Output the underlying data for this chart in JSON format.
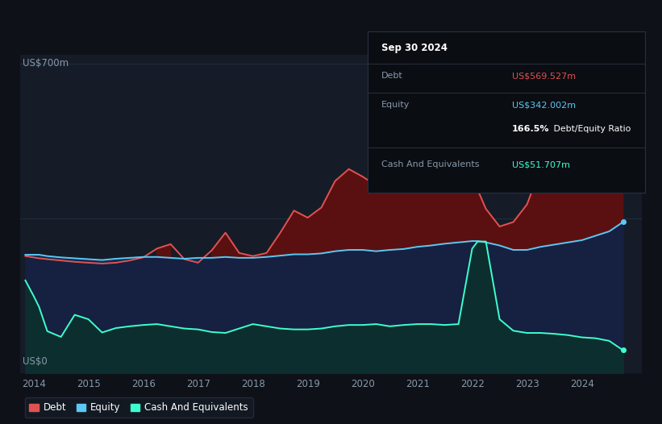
{
  "bg_color": "#0e1117",
  "plot_bg_color": "#151c27",
  "ylabel_top": "US$700m",
  "ylabel_bottom": "US$0",
  "x_ticks": [
    "2014",
    "2015",
    "2016",
    "2017",
    "2018",
    "2019",
    "2020",
    "2021",
    "2022",
    "2023",
    "2024"
  ],
  "legend": [
    "Debt",
    "Equity",
    "Cash And Equivalents"
  ],
  "legend_colors": [
    "#e05252",
    "#5bc8f5",
    "#3dffd0"
  ],
  "debt_color": "#e05252",
  "equity_color": "#5bc8f5",
  "cash_color": "#3dffd0",
  "debt_fill_color": "#5a1010",
  "equity_fill_color": "#162040",
  "cash_fill_color": "#0d2e2e",
  "grid_color": "#253040",
  "tooltip_bg": "#0a0d12",
  "tooltip_border": "#2a3040",
  "years": [
    2013.85,
    2014.0,
    2014.1,
    2014.25,
    2014.5,
    2014.75,
    2015.0,
    2015.25,
    2015.5,
    2015.75,
    2016.0,
    2016.25,
    2016.5,
    2016.75,
    2017.0,
    2017.25,
    2017.5,
    2017.75,
    2018.0,
    2018.25,
    2018.5,
    2018.75,
    2019.0,
    2019.25,
    2019.5,
    2019.75,
    2020.0,
    2020.25,
    2020.5,
    2020.75,
    2021.0,
    2021.25,
    2021.5,
    2021.75,
    2022.0,
    2022.1,
    2022.25,
    2022.5,
    2022.75,
    2023.0,
    2023.25,
    2023.5,
    2023.75,
    2024.0,
    2024.25,
    2024.5,
    2024.75
  ],
  "debt": [
    265,
    262,
    260,
    258,
    255,
    252,
    250,
    248,
    250,
    255,
    262,
    282,
    292,
    258,
    250,
    278,
    318,
    272,
    265,
    272,
    318,
    368,
    352,
    375,
    435,
    462,
    445,
    425,
    435,
    445,
    452,
    462,
    458,
    442,
    422,
    415,
    372,
    332,
    342,
    382,
    465,
    615,
    572,
    535,
    522,
    542,
    570
  ],
  "equity": [
    268,
    268,
    268,
    265,
    262,
    260,
    258,
    256,
    259,
    261,
    263,
    263,
    261,
    259,
    261,
    261,
    263,
    261,
    261,
    263,
    266,
    269,
    269,
    271,
    276,
    279,
    279,
    276,
    279,
    281,
    286,
    289,
    293,
    296,
    299,
    299,
    296,
    289,
    279,
    279,
    286,
    291,
    296,
    301,
    311,
    321,
    342
  ],
  "cash": [
    210,
    175,
    150,
    95,
    82,
    132,
    122,
    92,
    102,
    106,
    109,
    111,
    106,
    101,
    99,
    93,
    91,
    101,
    111,
    106,
    101,
    99,
    99,
    101,
    106,
    109,
    109,
    111,
    106,
    109,
    111,
    111,
    109,
    111,
    282,
    298,
    298,
    122,
    96,
    91,
    91,
    89,
    86,
    81,
    79,
    73,
    52
  ],
  "tooltip_title": "Sep 30 2024",
  "tooltip_debt_label": "Debt",
  "tooltip_debt_value": "US$569.527m",
  "tooltip_equity_label": "Equity",
  "tooltip_equity_value": "US$342.002m",
  "tooltip_ratio": "166.5%",
  "tooltip_ratio_text": " Debt/Equity Ratio",
  "tooltip_cash_label": "Cash And Equivalents",
  "tooltip_cash_value": "US$51.707m"
}
